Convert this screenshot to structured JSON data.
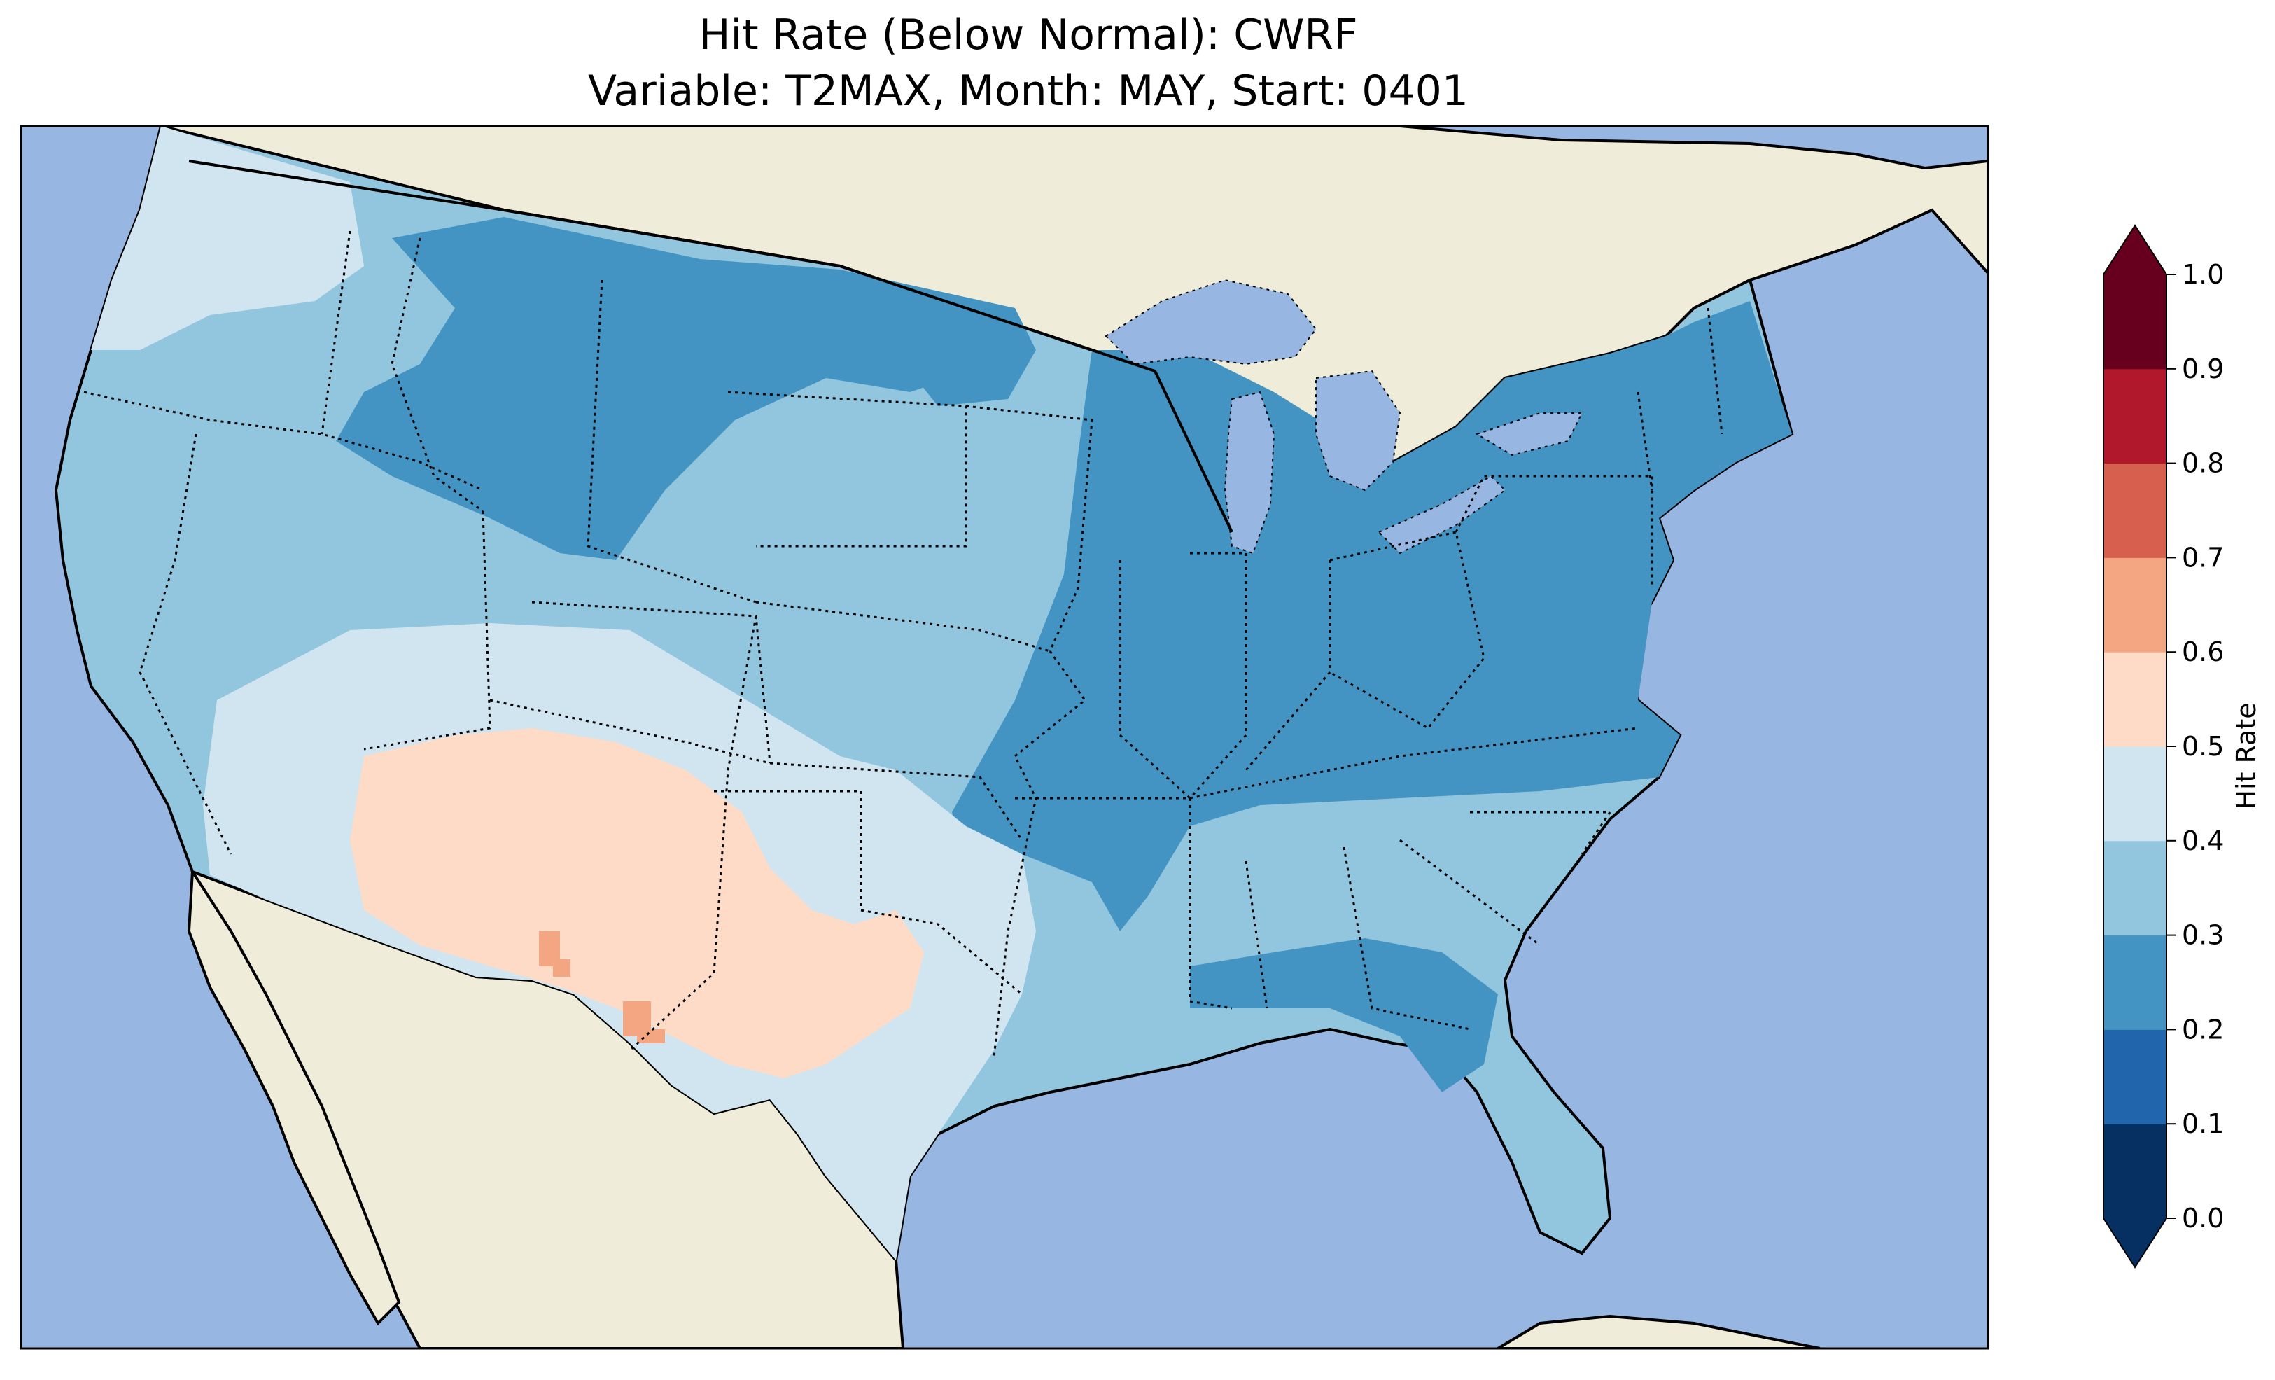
{
  "title": {
    "line1": "Hit Rate (Below Normal): CWRF",
    "line2": "Variable: T2MAX, Month: MAY, Start: 0401"
  },
  "map": {
    "projection": "Lambert Conformal (CONUS)",
    "ocean_color": "#97b6e1",
    "land_color": "#efedda",
    "coastline_color": "#000000",
    "state_border_style": "dotted"
  },
  "colorbar": {
    "label": "Hit Rate",
    "ticks": [
      "0.0",
      "0.1",
      "0.2",
      "0.3",
      "0.4",
      "0.5",
      "0.6",
      "0.7",
      "0.8",
      "0.9",
      "1.0"
    ],
    "bins": [
      {
        "range": [
          0.0,
          0.1
        ],
        "color": "#053061"
      },
      {
        "range": [
          0.1,
          0.2
        ],
        "color": "#2166ac"
      },
      {
        "range": [
          0.2,
          0.3
        ],
        "color": "#4393c3"
      },
      {
        "range": [
          0.3,
          0.4
        ],
        "color": "#92c5de"
      },
      {
        "range": [
          0.4,
          0.5
        ],
        "color": "#d1e5f0"
      },
      {
        "range": [
          0.5,
          0.6
        ],
        "color": "#fddbc7"
      },
      {
        "range": [
          0.6,
          0.7
        ],
        "color": "#f4a582"
      },
      {
        "range": [
          0.7,
          0.8
        ],
        "color": "#d6604d"
      },
      {
        "range": [
          0.8,
          0.9
        ],
        "color": "#b2182b"
      },
      {
        "range": [
          0.9,
          1.0
        ],
        "color": "#67001f"
      }
    ],
    "extend": "both"
  },
  "regions": [
    {
      "name": "Pacific Northwest coast",
      "level": 0.45
    },
    {
      "name": "Interior Northwest",
      "level": 0.35
    },
    {
      "name": "Northern Rockies / Montana",
      "level": 0.25
    },
    {
      "name": "California",
      "level": 0.35
    },
    {
      "name": "Southern Nevada / Utah",
      "level": 0.45
    },
    {
      "name": "Four Corners / Southwest",
      "level": 0.55
    },
    {
      "name": "West Texas",
      "level": 0.55
    },
    {
      "name": "Central & Southern Plains",
      "level": 0.45
    },
    {
      "name": "Northern Plains",
      "level": 0.35
    },
    {
      "name": "Midwest / Ohio Valley",
      "level": 0.25
    },
    {
      "name": "Northeast",
      "level": 0.25
    },
    {
      "name": "Southeast",
      "level": 0.35
    },
    {
      "name": "Florida",
      "level": 0.35
    },
    {
      "name": "Southern Arizona / New Mexico spots",
      "level": 0.65
    }
  ]
}
